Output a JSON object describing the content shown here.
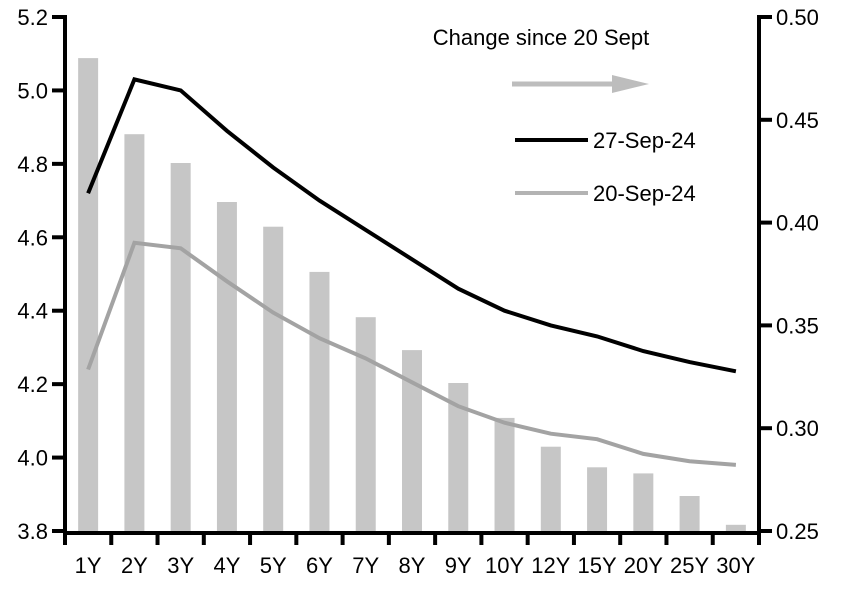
{
  "chart_data": {
    "type": "bar",
    "subtype": "combo-bar-line",
    "title": "",
    "categories": [
      "1Y",
      "2Y",
      "3Y",
      "4Y",
      "5Y",
      "6Y",
      "7Y",
      "8Y",
      "9Y",
      "10Y",
      "12Y",
      "15Y",
      "20Y",
      "25Y",
      "30Y"
    ],
    "series": [
      {
        "name": "Change since 20 Sept",
        "type": "bar",
        "axis": "right",
        "color": "#c6c6c6",
        "values": [
          0.48,
          0.443,
          0.429,
          0.41,
          0.398,
          0.376,
          0.354,
          0.338,
          0.322,
          0.305,
          0.291,
          0.281,
          0.278,
          0.267,
          0.253
        ]
      },
      {
        "name": "27-Sep-24",
        "type": "line",
        "axis": "left",
        "color": "#000000",
        "values": [
          4.72,
          5.03,
          5.0,
          4.89,
          4.79,
          4.7,
          4.62,
          4.54,
          4.46,
          4.4,
          4.36,
          4.33,
          4.29,
          4.26,
          4.235
        ]
      },
      {
        "name": "20-Sep-24",
        "type": "line",
        "axis": "left",
        "color": "#a3a3a3",
        "values": [
          4.24,
          4.585,
          4.57,
          4.48,
          4.395,
          4.325,
          4.27,
          4.205,
          4.14,
          4.095,
          4.065,
          4.05,
          4.01,
          3.99,
          3.98
        ]
      }
    ],
    "left_axis": {
      "min": 3.8,
      "max": 5.2,
      "step": 0.2,
      "tick_labels": [
        "5.2",
        "5.0",
        "4.8",
        "4.6",
        "4.4",
        "4.2",
        "4.0",
        "3.8"
      ]
    },
    "right_axis": {
      "min": 0.25,
      "max": 0.5,
      "step": 0.05,
      "tick_labels": [
        "0.50",
        "0.45",
        "0.40",
        "0.35",
        "0.30",
        "0.25"
      ]
    },
    "xlabel": "",
    "ylabel": "",
    "grid": false,
    "background": "#ffffff",
    "legend": {
      "position": "top-right-inside",
      "title": "Change since 20 Sept",
      "arrow_icon_color": "#bdbdbd",
      "entries": [
        {
          "label": "27-Sep-24",
          "color": "#000000"
        },
        {
          "label": "20-Sep-24",
          "color": "#b3b3b3"
        }
      ]
    }
  }
}
